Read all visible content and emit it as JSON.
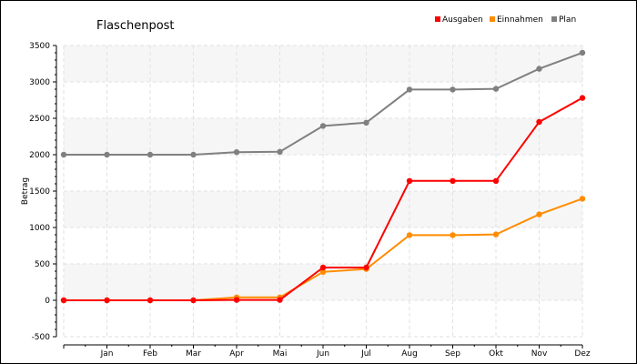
{
  "chart_data": {
    "type": "line",
    "title": "Flaschenpost",
    "xlabel": "",
    "ylabel": "Betrag",
    "ylim": [
      -500,
      3500
    ],
    "yticks": [
      -500,
      0,
      500,
      1000,
      1500,
      2000,
      2500,
      3000,
      3500
    ],
    "categories": [
      "",
      "Jan",
      "Feb",
      "Mar",
      "Apr",
      "Mai",
      "Jun",
      "Jul",
      "Aug",
      "Sep",
      "Okt",
      "Nov",
      "Dez"
    ],
    "grid": true,
    "legend_position": "top-right",
    "series": [
      {
        "name": "Ausgaben",
        "color": "#ff0000",
        "values": [
          0,
          0,
          0,
          0,
          5,
          5,
          450,
          450,
          1640,
          1640,
          1640,
          2450,
          2780
        ]
      },
      {
        "name": "Einnahmen",
        "color": "#ff8c00",
        "values": [
          0,
          0,
          0,
          0,
          40,
          40,
          390,
          430,
          895,
          895,
          905,
          1180,
          1395
        ]
      },
      {
        "name": "Plan",
        "color": "#808080",
        "values": [
          2000,
          2000,
          2000,
          2000,
          2035,
          2040,
          2395,
          2440,
          2895,
          2895,
          2905,
          3180,
          3400
        ]
      }
    ]
  }
}
